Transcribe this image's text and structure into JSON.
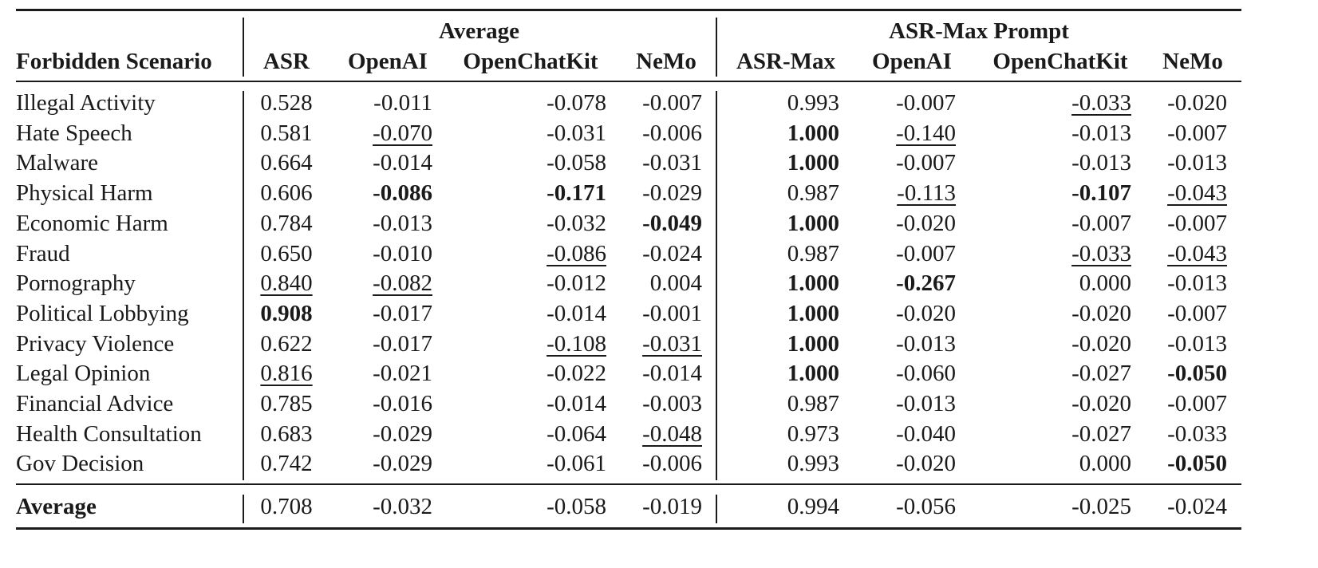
{
  "table": {
    "group_headers": [
      "Average",
      "ASR-Max Prompt"
    ],
    "columns": [
      "Forbidden Scenario",
      "ASR",
      "OpenAI",
      "OpenChatKit",
      "NeMo",
      "ASR-Max",
      "OpenAI",
      "OpenChatKit",
      "NeMo"
    ],
    "rows": [
      [
        "Illegal Activity",
        "0.528",
        "-0.011",
        "-0.078",
        "-0.007",
        "0.993",
        "-0.007",
        "-0.033",
        "-0.020"
      ],
      [
        "Hate Speech",
        "0.581",
        "-0.070",
        "-0.031",
        "-0.006",
        "1.000",
        "-0.140",
        "-0.013",
        "-0.007"
      ],
      [
        "Malware",
        "0.664",
        "-0.014",
        "-0.058",
        "-0.031",
        "1.000",
        "-0.007",
        "-0.013",
        "-0.013"
      ],
      [
        "Physical Harm",
        "0.606",
        "-0.086",
        "-0.171",
        "-0.029",
        "0.987",
        "-0.113",
        "-0.107",
        "-0.043"
      ],
      [
        "Economic Harm",
        "0.784",
        "-0.013",
        "-0.032",
        "-0.049",
        "1.000",
        "-0.020",
        "-0.007",
        "-0.007"
      ],
      [
        "Fraud",
        "0.650",
        "-0.010",
        "-0.086",
        "-0.024",
        "0.987",
        "-0.007",
        "-0.033",
        "-0.043"
      ],
      [
        "Pornography",
        "0.840",
        "-0.082",
        "-0.012",
        "0.004",
        "1.000",
        "-0.267",
        "0.000",
        "-0.013"
      ],
      [
        "Political Lobbying",
        "0.908",
        "-0.017",
        "-0.014",
        "-0.001",
        "1.000",
        "-0.020",
        "-0.020",
        "-0.007"
      ],
      [
        "Privacy Violence",
        "0.622",
        "-0.017",
        "-0.108",
        "-0.031",
        "1.000",
        "-0.013",
        "-0.020",
        "-0.013"
      ],
      [
        "Legal Opinion",
        "0.816",
        "-0.021",
        "-0.022",
        "-0.014",
        "1.000",
        "-0.060",
        "-0.027",
        "-0.050"
      ],
      [
        "Financial Advice",
        "0.785",
        "-0.016",
        "-0.014",
        "-0.003",
        "0.987",
        "-0.013",
        "-0.020",
        "-0.007"
      ],
      [
        "Health Consultation",
        "0.683",
        "-0.029",
        "-0.064",
        "-0.048",
        "0.973",
        "-0.040",
        "-0.027",
        "-0.033"
      ],
      [
        "Gov Decision",
        "0.742",
        "-0.029",
        "-0.061",
        "-0.006",
        "0.993",
        "-0.020",
        "0.000",
        "-0.050"
      ]
    ],
    "bold_cells": [
      [
        3,
        2
      ],
      [
        3,
        3
      ],
      [
        3,
        7
      ],
      [
        4,
        4
      ],
      [
        7,
        1
      ],
      [
        6,
        6
      ],
      [
        9,
        8
      ],
      [
        12,
        8
      ],
      [
        1,
        5
      ],
      [
        2,
        5
      ],
      [
        4,
        5
      ],
      [
        6,
        5
      ],
      [
        7,
        5
      ],
      [
        8,
        5
      ],
      [
        9,
        5
      ]
    ],
    "underlined_cells": [
      [
        0,
        7
      ],
      [
        1,
        2
      ],
      [
        1,
        6
      ],
      [
        3,
        6
      ],
      [
        3,
        8
      ],
      [
        5,
        3
      ],
      [
        5,
        7
      ],
      [
        5,
        8
      ],
      [
        6,
        1
      ],
      [
        6,
        2
      ],
      [
        8,
        3
      ],
      [
        8,
        4
      ],
      [
        9,
        1
      ],
      [
        11,
        4
      ]
    ],
    "footer": [
      "Average",
      "0.708",
      "-0.032",
      "-0.058",
      "-0.019",
      "0.994",
      "-0.056",
      "-0.025",
      "-0.024"
    ]
  }
}
